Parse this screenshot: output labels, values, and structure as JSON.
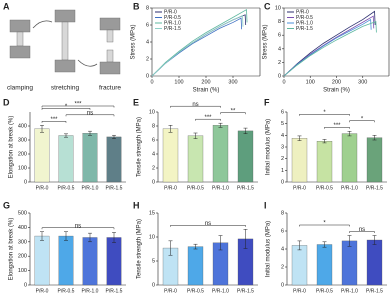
{
  "panel_a": {
    "label": "A",
    "steps": [
      "clamping",
      "stretching",
      "fracture"
    ]
  },
  "chart_data": [
    {
      "type": "line",
      "panel": "B",
      "xlabel": "Strain (%)",
      "ylabel": "Stress (MPa)",
      "xlim": [
        0,
        400
      ],
      "xticks": [
        0,
        100,
        200,
        300
      ],
      "ylim": [
        0,
        8
      ],
      "yticks": [
        0,
        2,
        4,
        6,
        8
      ],
      "legend": "upper-left",
      "series": [
        {
          "name": "P/R-0",
          "color": "#2b2d6e",
          "x": [
            0,
            50,
            100,
            150,
            200,
            250,
            300,
            345,
            347
          ],
          "values": [
            0,
            1.5,
            2.8,
            3.9,
            4.9,
            5.8,
            6.6,
            7.2,
            6.0
          ]
        },
        {
          "name": "P/R-0.5",
          "color": "#3d6fc2",
          "x": [
            0,
            50,
            100,
            150,
            200,
            250,
            300,
            330,
            332
          ],
          "values": [
            0,
            1.5,
            2.7,
            3.8,
            4.7,
            5.6,
            6.3,
            6.8,
            5.5
          ]
        },
        {
          "name": "P/R-1.0",
          "color": "#5fb8a0",
          "x": [
            0,
            50,
            100,
            150,
            200,
            250,
            300,
            350,
            352
          ],
          "values": [
            0,
            1.6,
            2.9,
            4.1,
            5.1,
            6.0,
            6.9,
            7.8,
            6.3
          ]
        },
        {
          "name": "P/R-1.5",
          "color": "#8fd0c8",
          "x": [
            0,
            50,
            100,
            150,
            200,
            250,
            300,
            335,
            337
          ],
          "values": [
            0,
            1.5,
            2.8,
            3.9,
            4.9,
            5.8,
            6.6,
            7.1,
            5.8
          ]
        }
      ]
    },
    {
      "type": "line",
      "panel": "C",
      "xlabel": "Strain (%)",
      "ylabel": "Stress (MPa)",
      "xlim": [
        0,
        400
      ],
      "xticks": [
        0,
        100,
        200,
        300
      ],
      "ylim": [
        0,
        10
      ],
      "yticks": [
        0,
        2,
        4,
        6,
        8,
        10
      ],
      "legend": "upper-left",
      "series": [
        {
          "name": "P/R-0",
          "color": "#2b2d6e",
          "x": [
            0,
            50,
            100,
            150,
            200,
            250,
            300,
            345,
            347
          ],
          "values": [
            0,
            1.8,
            3.4,
            4.8,
            6.0,
            7.2,
            8.3,
            9.5,
            7.5
          ]
        },
        {
          "name": "P/R-0.5",
          "color": "#7a4fb0",
          "x": [
            0,
            50,
            100,
            150,
            200,
            250,
            300,
            340,
            342
          ],
          "values": [
            0,
            1.7,
            3.2,
            4.5,
            5.7,
            6.8,
            7.9,
            8.8,
            7.0
          ]
        },
        {
          "name": "P/R-1.0",
          "color": "#4a8fd8",
          "x": [
            0,
            50,
            100,
            150,
            200,
            250,
            300,
            330,
            332
          ],
          "values": [
            0,
            1.7,
            3.1,
            4.4,
            5.6,
            6.6,
            7.6,
            8.3,
            6.8
          ]
        },
        {
          "name": "P/R-1.5",
          "color": "#5fb8a0",
          "x": [
            0,
            50,
            100,
            150,
            200,
            250,
            300,
            350,
            352
          ],
          "values": [
            0,
            1.6,
            3.0,
            4.2,
            5.3,
            6.3,
            7.3,
            8.0,
            6.4
          ]
        }
      ]
    },
    {
      "type": "bar",
      "panel": "D",
      "ylabel": "Elongation at break (%)",
      "ylim": [
        0,
        500
      ],
      "yticks": [
        0,
        100,
        200,
        300,
        400
      ],
      "categories": [
        "P/R-0",
        "P/R-0.5",
        "P/R-1.0",
        "P/R-1.5"
      ],
      "values": [
        380,
        332,
        348,
        322
      ],
      "errors": [
        25,
        12,
        15,
        12
      ],
      "colors": [
        "#f1f5cf",
        "#b7e0d4",
        "#7fb7a9",
        "#5f7f88"
      ],
      "annotations": [
        {
          "text": "***",
          "between": [
            "P/R-0",
            "P/R-0.5"
          ]
        },
        {
          "text": "ns",
          "between": [
            "P/R-0.5",
            "P/R-1.5"
          ]
        },
        {
          "text": "*",
          "between": [
            "P/R-0",
            "P/R-1.0"
          ]
        },
        {
          "text": "***",
          "between": [
            "P/R-0",
            "P/R-1.5"
          ]
        }
      ]
    },
    {
      "type": "bar",
      "panel": "E",
      "ylabel": "Tensile strength (MPa)",
      "ylim": [
        0,
        10
      ],
      "yticks": [
        0,
        2,
        4,
        6,
        8,
        10
      ],
      "categories": [
        "P/R-0",
        "P/R-0.5",
        "P/R-1.0",
        "P/R-1.5"
      ],
      "values": [
        7.6,
        6.6,
        8.1,
        7.3
      ],
      "errors": [
        0.5,
        0.4,
        0.3,
        0.4
      ],
      "colors": [
        "#f3f4c4",
        "#c8e6b0",
        "#8ec79a",
        "#5e9e7d"
      ],
      "annotations": [
        {
          "text": "***",
          "between": [
            "P/R-0.5",
            "P/R-1.0"
          ]
        },
        {
          "text": "**",
          "between": [
            "P/R-1.0",
            "P/R-1.5"
          ]
        },
        {
          "text": "ns",
          "between": [
            "P/R-0",
            "P/R-1.0"
          ]
        }
      ]
    },
    {
      "type": "bar",
      "panel": "F",
      "ylabel": "Initial modulus (MPa)",
      "ylim": [
        0,
        6
      ],
      "yticks": [
        0,
        1,
        2,
        3,
        4,
        5,
        6
      ],
      "categories": [
        "P/R-0",
        "P/R-0.5",
        "P/R-1.0",
        "P/R-1.5"
      ],
      "values": [
        3.75,
        3.5,
        4.15,
        3.8
      ],
      "errors": [
        0.2,
        0.15,
        0.2,
        0.2
      ],
      "colors": [
        "#eef0c0",
        "#c6e3a3",
        "#9fd08f",
        "#6aa37a"
      ],
      "annotations": [
        {
          "text": "***",
          "between": [
            "P/R-0.5",
            "P/R-1.0"
          ]
        },
        {
          "text": "*",
          "between": [
            "P/R-1.0",
            "P/R-1.5"
          ]
        },
        {
          "text": "*",
          "between": [
            "P/R-0",
            "P/R-1.0"
          ]
        }
      ]
    },
    {
      "type": "bar",
      "panel": "G",
      "ylabel": "Elongation at break (%)",
      "ylim": [
        0,
        500
      ],
      "yticks": [
        0,
        100,
        200,
        300,
        400,
        500
      ],
      "categories": [
        "P/R-0",
        "P/R-0.5",
        "P/R-1.0",
        "P/R-1.5"
      ],
      "values": [
        340,
        340,
        330,
        330
      ],
      "errors": [
        30,
        30,
        30,
        35
      ],
      "colors": [
        "#bfe3f4",
        "#4ea8e8",
        "#4e74da",
        "#3f4cc0"
      ],
      "annotations": [
        {
          "text": "ns",
          "between": [
            "P/R-0",
            "P/R-1.5"
          ]
        }
      ]
    },
    {
      "type": "bar",
      "panel": "H",
      "ylabel": "Tensile strength (MPa)",
      "ylim": [
        0,
        15
      ],
      "yticks": [
        0,
        5,
        10,
        15
      ],
      "categories": [
        "P/R-0",
        "P/R-0.5",
        "P/R-1.0",
        "P/R-1.5"
      ],
      "values": [
        7.7,
        8.0,
        8.8,
        9.6
      ],
      "errors": [
        1.5,
        0.5,
        1.5,
        2.0
      ],
      "colors": [
        "#bfe3f4",
        "#4ea8e8",
        "#4e74da",
        "#3f4cc0"
      ],
      "annotations": [
        {
          "text": "ns",
          "between": [
            "P/R-0",
            "P/R-1.5"
          ]
        }
      ]
    },
    {
      "type": "bar",
      "panel": "I",
      "ylabel": "Initial modulus (MPa)",
      "ylim": [
        0,
        8
      ],
      "yticks": [
        0,
        2,
        4,
        6,
        8
      ],
      "categories": [
        "P/R-0",
        "P/R-0.5",
        "P/R-1.0",
        "P/R-1.5"
      ],
      "values": [
        4.4,
        4.5,
        4.9,
        5.0
      ],
      "errors": [
        0.5,
        0.3,
        0.6,
        0.5
      ],
      "colors": [
        "#bfe3f4",
        "#4ea8e8",
        "#4e74da",
        "#3f4cc0"
      ],
      "annotations": [
        {
          "text": "ns",
          "between": [
            "P/R-1.0",
            "P/R-1.5"
          ]
        },
        {
          "text": "*",
          "between": [
            "P/R-0",
            "P/R-1.0"
          ]
        }
      ]
    }
  ]
}
